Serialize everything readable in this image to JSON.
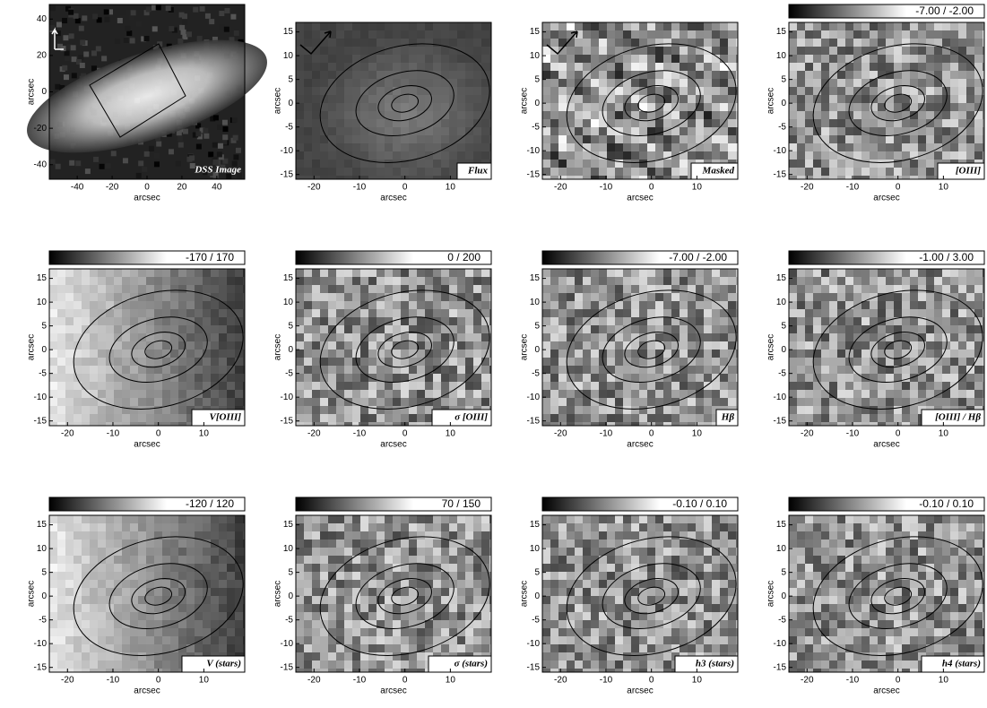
{
  "axis_label": "arcsec",
  "dss": {
    "label": "DSS Image",
    "xlim": [
      -56,
      56
    ],
    "ylim": [
      -48,
      48
    ],
    "xticks": [
      -40,
      -20,
      0,
      20,
      40
    ],
    "yticks": [
      -40,
      -20,
      0,
      20,
      40
    ]
  },
  "map_axes": {
    "xlim": [
      -24,
      19
    ],
    "ylim": [
      -16,
      17
    ],
    "xticks": [
      -20,
      -10,
      0,
      10
    ],
    "yticks": [
      -15,
      -10,
      -5,
      0,
      5,
      10,
      15
    ]
  },
  "maps": [
    {
      "label": "Flux"
    },
    {
      "label": "Masked"
    },
    {
      "label": "[OIII]",
      "range": "-7.00 / -2.00"
    },
    {
      "label": "V[OIII]",
      "range": "-170 / 170"
    },
    {
      "label": "σ [OIII]",
      "range": "0 / 200"
    },
    {
      "label": "Hβ",
      "range": "-7.00 / -2.00"
    },
    {
      "label": "[OIII] / Hβ",
      "range": "-1.00 / 3.00"
    },
    {
      "label": "V (stars)",
      "range": "-120 / 120"
    },
    {
      "label": "σ (stars)",
      "range": "70 / 150"
    },
    {
      "label": "h3 (stars)",
      "range": "-0.10 / 0.10"
    },
    {
      "label": "h4 (stars)",
      "range": "-0.10 / 0.10"
    }
  ]
}
